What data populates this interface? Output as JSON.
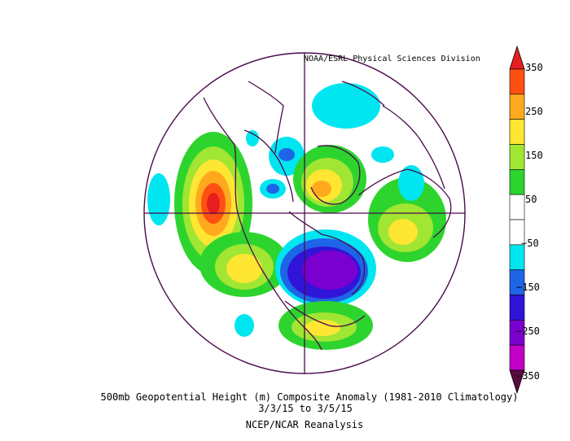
{
  "credit": "NOAA/ESRL Physical Sciences Division",
  "caption": {
    "line1": "500mb Geopotential Height (m) Composite Anomaly (1981-2010 Climatology)",
    "line2": "3/3/15  to 3/5/15",
    "line3": "NCEP/NCAR Reanalysis"
  },
  "colorbar": {
    "labels": [
      "350",
      "250",
      "150",
      "50",
      "−50",
      "−150",
      "−250",
      "−350"
    ],
    "colors": [
      "#5a0a3c",
      "#c200c8",
      "#7a00d0",
      "#3014d8",
      "#1e64e6",
      "#00e6f0",
      "#ffffff",
      "#ffffff",
      "#2dd42d",
      "#a0e632",
      "#ffe632",
      "#ffaa1e",
      "#ff5014",
      "#e61e1e"
    ],
    "levels": [
      -350,
      -300,
      -250,
      -200,
      -150,
      -100,
      -50,
      0,
      50,
      100,
      150,
      200,
      250,
      300,
      350
    ]
  },
  "map": {
    "projection": "north polar stereographic",
    "coastline_color": "#4a0a4a",
    "anomaly_centers": [
      {
        "region": "NE Pacific / Gulf of Alaska",
        "value": 330,
        "sign": "positive"
      },
      {
        "region": "E North America / Great Lakes",
        "value": -290,
        "sign": "negative"
      },
      {
        "region": "Greenland / Norwegian Sea",
        "value": 230,
        "sign": "positive"
      },
      {
        "region": "SW United States",
        "value": 200,
        "sign": "positive"
      },
      {
        "region": "Siberia / Urals",
        "value": 160,
        "sign": "positive"
      },
      {
        "region": "North Atlantic",
        "value": 140,
        "sign": "positive"
      },
      {
        "region": "Arctic Ocean",
        "value": -120,
        "sign": "negative"
      }
    ]
  }
}
